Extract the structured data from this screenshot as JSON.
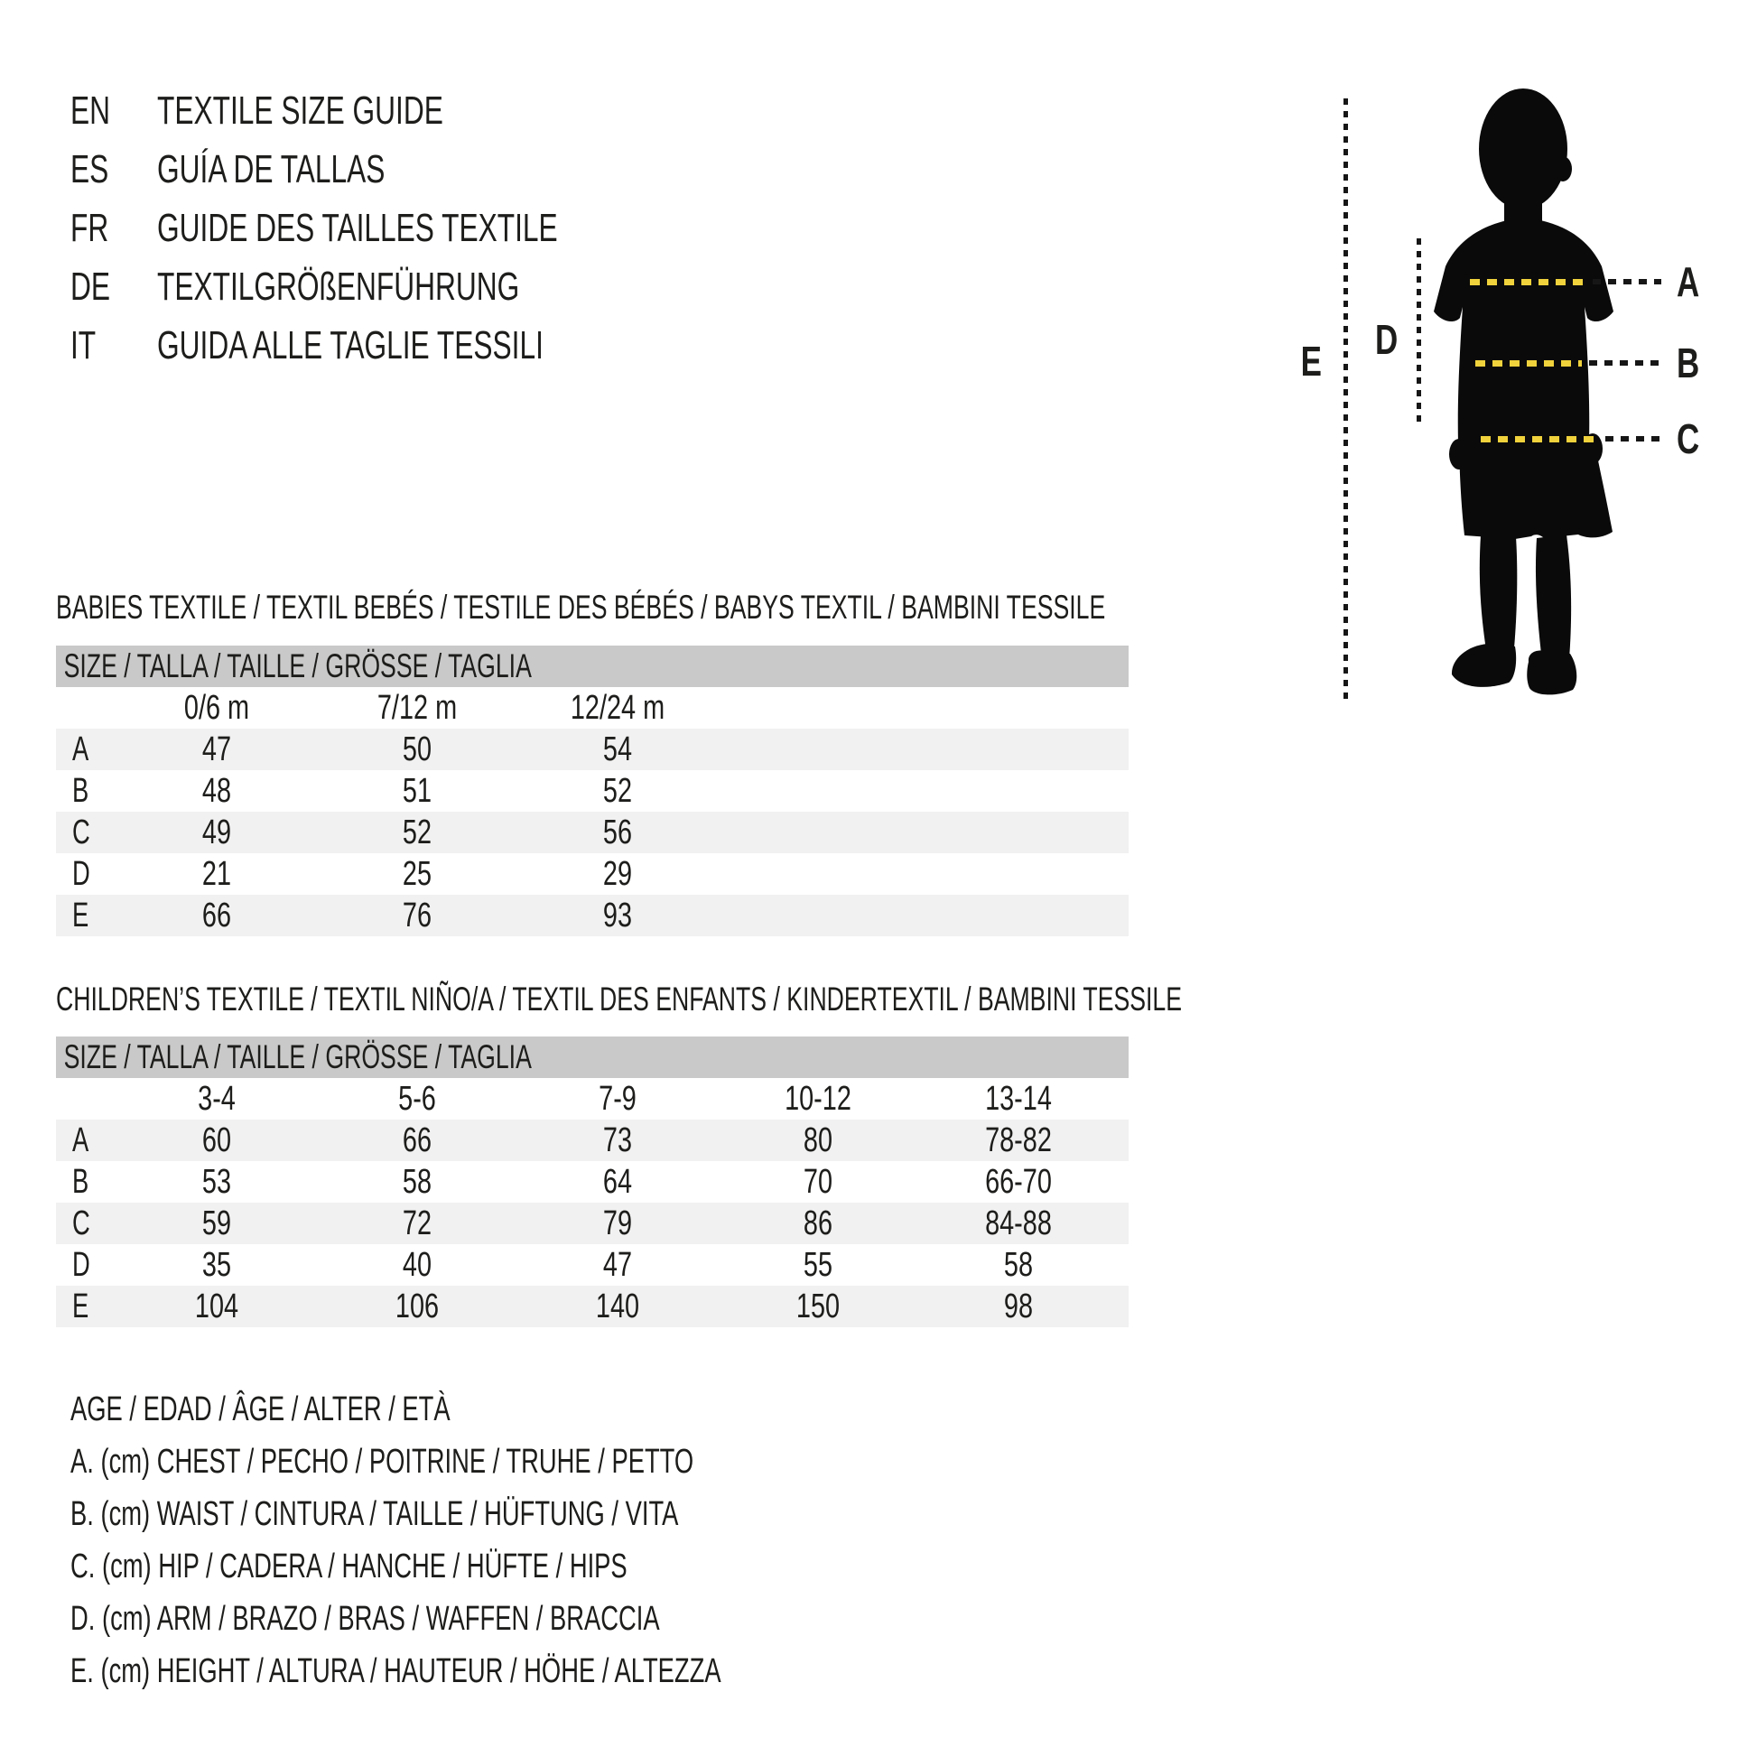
{
  "page": {
    "background": "#ffffff",
    "text_color": "#1d1d1b"
  },
  "language_titles": [
    {
      "code": "EN",
      "title": "TEXTILE SIZE GUIDE"
    },
    {
      "code": "ES",
      "title": "GUÍA DE TALLAS"
    },
    {
      "code": "FR",
      "title": "GUIDE DES TAILLES TEXTILE"
    },
    {
      "code": "DE",
      "title": "TEXTILGRÖßENFÜHRUNG"
    },
    {
      "code": "IT",
      "title": "GUIDA ALLE TAGLIE TESSILI"
    }
  ],
  "figure": {
    "measure_labels": {
      "chest": "A",
      "waist": "B",
      "hip": "C",
      "arm": "D",
      "height": "E"
    },
    "line_color_yellow": "#f0d23c",
    "line_color_dark": "#161616",
    "silhouette_color": "#0a0a0a"
  },
  "babies_table": {
    "heading": "BABIES TEXTILE / TEXTIL BEBÉS / TESTILE DES BÉBÉS / BABYS TEXTIL / BAMBINI TESSILE",
    "size_header": "SIZE / TALLA / TAILLE / GRÖSSE / TAGLIA",
    "columns": [
      "0/6 m",
      "7/12 m",
      "12/24 m"
    ],
    "rows": [
      {
        "label": "A",
        "values": [
          "47",
          "50",
          "54"
        ]
      },
      {
        "label": "B",
        "values": [
          "48",
          "51",
          "52"
        ]
      },
      {
        "label": "C",
        "values": [
          "49",
          "52",
          "56"
        ]
      },
      {
        "label": "D",
        "values": [
          "21",
          "25",
          "29"
        ]
      },
      {
        "label": "E",
        "values": [
          "66",
          "76",
          "93"
        ]
      }
    ]
  },
  "children_table": {
    "heading": "CHILDREN’S TEXTILE / TEXTIL NIÑO/A / TEXTIL DES ENFANTS / KINDERTEXTIL / BAMBINI TESSILE",
    "size_header": "SIZE / TALLA / TAILLE / GRÖSSE / TAGLIA",
    "columns": [
      "3-4",
      "5-6",
      "7-9",
      "10-12",
      "13-14"
    ],
    "rows": [
      {
        "label": "A",
        "values": [
          "60",
          "66",
          "73",
          "80",
          "78-82"
        ]
      },
      {
        "label": "B",
        "values": [
          "53",
          "58",
          "64",
          "70",
          "66-70"
        ]
      },
      {
        "label": "C",
        "values": [
          "59",
          "72",
          "79",
          "86",
          "84-88"
        ]
      },
      {
        "label": "D",
        "values": [
          "35",
          "40",
          "47",
          "55",
          "58"
        ]
      },
      {
        "label": "E",
        "values": [
          "104",
          "106",
          "140",
          "150",
          "98"
        ]
      }
    ]
  },
  "legend": [
    "AGE / EDAD / ÂGE / ALTER / ETÀ",
    "A. (cm) CHEST / PECHO / POITRINE / TRUHE / PETTO",
    "B. (cm) WAIST / CINTURA / TAILLE / HÜFTUNG / VITA",
    "C. (cm) HIP / CADERA / HANCHE / HÜFTE / HIPS",
    "D. (cm) ARM / BRAZO / BRAS / WAFFEN / BRACCIA",
    "E. (cm) HEIGHT / ALTURA / HAUTEUR / HÖHE / ALTEZZA"
  ],
  "colors": {
    "header_bar": "#c9c9c9",
    "row_stripe": "#f1f1f1"
  }
}
